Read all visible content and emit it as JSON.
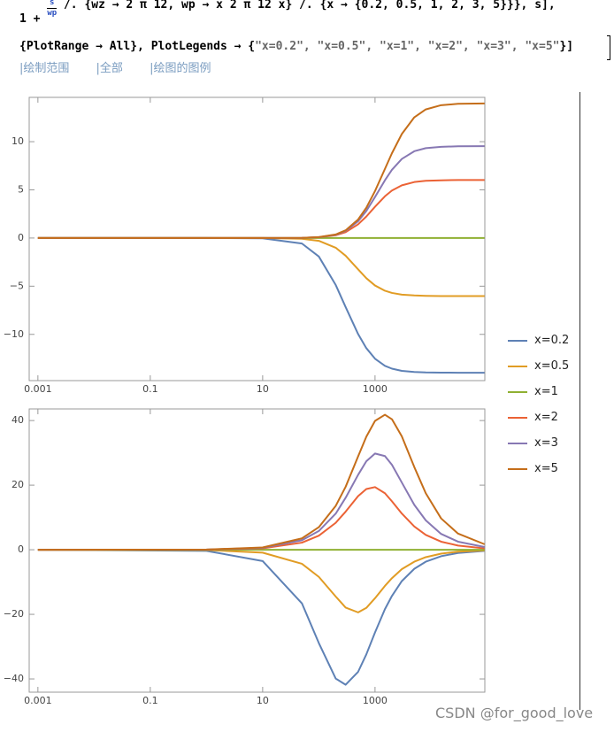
{
  "code": {
    "line1": {
      "prefix": "1 +",
      "numerator": "s",
      "denominator": "wp",
      "rest": "/. {wz → 2 π 12, wp → x 2 π 12 x} /. {x → {0.2, 0.5, 1, 2, 3, 5}}}, s],"
    },
    "line2": {
      "plain": "{PlotRange → All}, PlotLegends → {",
      "strings": "\"x=0.2\", \"x=0.5\", \"x=1\", \"x=2\", \"x=3\", \"x=5\"",
      "close": "}]"
    },
    "links": [
      "|绘制范围",
      "|全部",
      "|绘图的图例"
    ]
  },
  "watermark": "CSDN @for_good_love",
  "chart_data": [
    {
      "type": "line",
      "xscale": "log",
      "legend": "right",
      "x": [
        0.001,
        1,
        10,
        50,
        100,
        200,
        300,
        500,
        700,
        1000,
        1500,
        2000,
        3000,
        5000,
        8000,
        15000,
        30000,
        89000
      ],
      "xlim": [
        0.0007,
        90000
      ],
      "xticks": [
        0.001,
        0.1,
        10,
        1000
      ],
      "ylim": [
        -14.8,
        14.6
      ],
      "yticks": [
        {
          "value": -10,
          "label": "−10"
        },
        {
          "value": -5,
          "label": "−5"
        },
        0,
        5,
        10
      ],
      "series": [
        {
          "name": "x=0.2",
          "color": "#5e81b5",
          "values": [
            0,
            0,
            -0.03,
            -0.57,
            -1.92,
            -4.88,
            -7.17,
            -9.97,
            -11.43,
            -12.53,
            -13.27,
            -13.56,
            -13.79,
            -13.9,
            -13.95,
            -13.97,
            -13.98,
            -13.98
          ]
        },
        {
          "name": "x=0.5",
          "color": "#e19c24",
          "values": [
            0,
            0,
            0,
            -0.08,
            -0.29,
            -1.01,
            -1.84,
            -3.25,
            -4.17,
            -4.93,
            -5.47,
            -5.7,
            -5.88,
            -5.96,
            -6,
            -6.02,
            -6.02,
            -6.02
          ]
        },
        {
          "name": "x=1",
          "color": "#8fb032",
          "values": [
            0,
            0,
            0,
            0,
            0,
            0,
            0,
            0,
            0,
            0,
            0,
            0,
            0,
            0,
            0,
            0,
            0,
            0
          ]
        },
        {
          "name": "x=2",
          "color": "#eb6235",
          "values": [
            0,
            0,
            0,
            0.02,
            0.08,
            0.29,
            0.61,
            1.42,
            2.23,
            3.25,
            4.33,
            4.93,
            5.47,
            5.81,
            5.94,
            5.99,
            6.02,
            6.02
          ]
        },
        {
          "name": "x=3",
          "color": "#8778b3",
          "values": [
            0,
            0,
            0,
            0.02,
            0.09,
            0.34,
            0.74,
            1.74,
            2.81,
            4.26,
            5.99,
            7.08,
            8.21,
            9.01,
            9.33,
            9.47,
            9.52,
            9.54
          ]
        },
        {
          "name": "x=5",
          "color": "#c56e1a",
          "values": [
            0,
            0,
            0,
            0.02,
            0.1,
            0.37,
            0.8,
            1.92,
            3.14,
            4.88,
            7.17,
            8.8,
            10.8,
            12.53,
            13.35,
            13.79,
            13.93,
            13.97
          ]
        }
      ]
    },
    {
      "type": "line",
      "xscale": "log",
      "x": [
        0.001,
        1,
        10,
        50,
        100,
        200,
        300,
        500,
        700,
        1000,
        1500,
        2000,
        3000,
        5000,
        8000,
        15000,
        30000,
        89000
      ],
      "xlim": [
        0.0007,
        90000
      ],
      "xticks": [
        0.001,
        0.1,
        10,
        1000
      ],
      "ylim": [
        -44.1,
        43.6
      ],
      "yticks": [
        {
          "value": -40,
          "label": "−40"
        },
        {
          "value": -20,
          "label": "−20"
        },
        0,
        20,
        40
      ],
      "series": [
        {
          "color": "#5e81b5",
          "values": [
            0,
            -0.35,
            -3.5,
            -16.6,
            -28.9,
            -39.9,
            -41.8,
            -37.8,
            -32.4,
            -25.6,
            -18.4,
            -14.3,
            -9.7,
            -5.9,
            -3.7,
            -2,
            -1,
            -0.34
          ]
        },
        {
          "color": "#e19c24",
          "values": [
            0,
            -0.09,
            -0.9,
            -4.35,
            -8.4,
            -14.5,
            -17.9,
            -19.4,
            -18,
            -15,
            -11.2,
            -8.8,
            -6,
            -3.7,
            -2.3,
            -1.2,
            -0.6,
            -0.21
          ]
        },
        {
          "color": "#8fb032",
          "values": [
            0,
            0,
            0,
            0,
            0,
            0,
            0,
            0,
            0,
            0,
            0,
            0,
            0,
            0,
            0,
            0,
            0,
            0
          ]
        },
        {
          "color": "#eb6235",
          "values": [
            0,
            0.04,
            0.44,
            2.2,
            4.35,
            8.35,
            11.8,
            16.6,
            18.8,
            19.4,
            17.5,
            15,
            11.2,
            7.2,
            4.6,
            2.5,
            1.3,
            0.42
          ]
        },
        {
          "color": "#8778b3",
          "values": [
            0,
            0.06,
            0.59,
            2.93,
            5.81,
            11.2,
            16.1,
            23.2,
            27.4,
            29.8,
            29,
            26.3,
            20.8,
            13.9,
            9.1,
            4.9,
            2.5,
            0.84
          ]
        },
        {
          "color": "#c56e1a",
          "values": [
            0,
            0.07,
            0.7,
            3.52,
            6.99,
            13.6,
            19.5,
            28.9,
            35,
            39.9,
            41.8,
            40.4,
            35.1,
            25.6,
            17.5,
            9.7,
            5,
            1.7
          ]
        }
      ]
    }
  ]
}
